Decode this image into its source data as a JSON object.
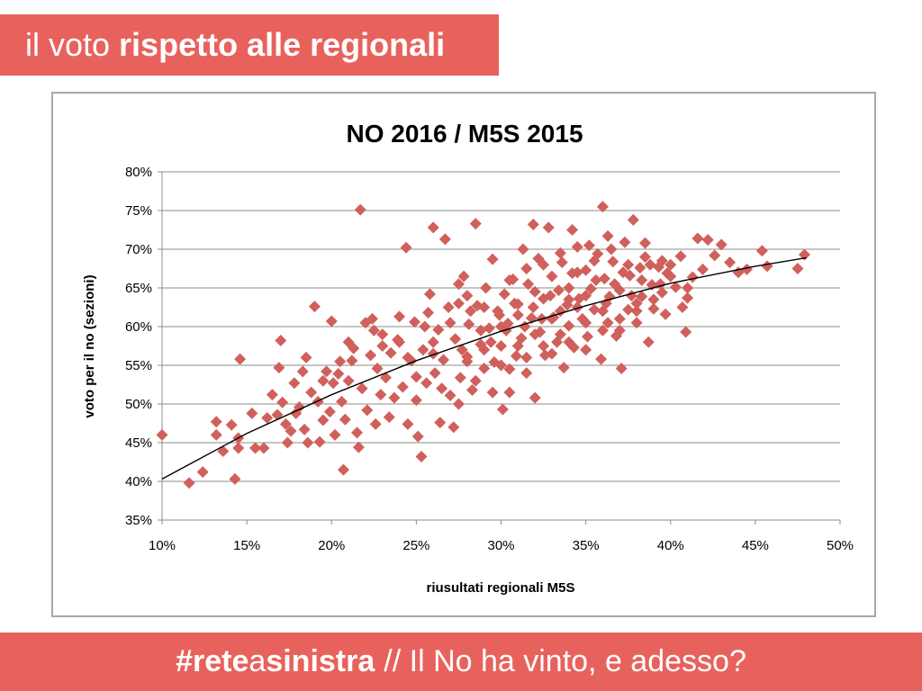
{
  "header": {
    "title_prefix": "il voto",
    "title_main": "rispetto alle regionali"
  },
  "footer": {
    "hashtag_part1": "#rete",
    "hashtag_part2": "a",
    "hashtag_part3": "sinistra",
    "tagline": "// Il No ha vinto, e adesso?"
  },
  "colors": {
    "accent": "#e8625d",
    "marker": "#d0605c",
    "trendline": "#000000"
  },
  "chart_data": {
    "type": "scatter",
    "title": "NO 2016 / M5S 2015",
    "xlabel": "riusultati regionali M5S",
    "ylabel": "voto per il no (sezioni)",
    "xlim": [
      10,
      50
    ],
    "ylim": [
      35,
      80
    ],
    "x_ticks": [
      "10%",
      "15%",
      "20%",
      "25%",
      "30%",
      "35%",
      "40%",
      "45%",
      "50%"
    ],
    "y_ticks": [
      "35%",
      "40%",
      "45%",
      "50%",
      "55%",
      "60%",
      "65%",
      "70%",
      "75%",
      "80%"
    ],
    "grid": "horizontal",
    "marker": "diamond",
    "trendline": {
      "type": "polynomial",
      "x": [
        10,
        15,
        20,
        25,
        30,
        35,
        40,
        45,
        48
      ],
      "y": [
        40.3,
        46.2,
        51.2,
        55.6,
        59.4,
        62.7,
        65.6,
        67.8,
        68.9
      ]
    },
    "points": [
      [
        10,
        46
      ],
      [
        11.6,
        39.8
      ],
      [
        12.4,
        41.2
      ],
      [
        13.2,
        47.7
      ],
      [
        13.2,
        46
      ],
      [
        13.6,
        43.9
      ],
      [
        14.1,
        47.3
      ],
      [
        14.3,
        40.3
      ],
      [
        14.5,
        45.6
      ],
      [
        14.5,
        44.3
      ],
      [
        14.6,
        55.8
      ],
      [
        15.3,
        48.8
      ],
      [
        15.5,
        44.3
      ],
      [
        16,
        44.3
      ],
      [
        16.2,
        48.2
      ],
      [
        16.5,
        51.2
      ],
      [
        16.8,
        48.6
      ],
      [
        16.9,
        54.7
      ],
      [
        17,
        58.2
      ],
      [
        17.1,
        50.2
      ],
      [
        17.3,
        47.4
      ],
      [
        17.4,
        45
      ],
      [
        17.6,
        46.5
      ],
      [
        17.8,
        52.7
      ],
      [
        17.9,
        48.8
      ],
      [
        18.1,
        49.6
      ],
      [
        18.3,
        54.2
      ],
      [
        18.4,
        46.7
      ],
      [
        18.6,
        45
      ],
      [
        18.8,
        51.5
      ],
      [
        19,
        62.6
      ],
      [
        19.2,
        50.3
      ],
      [
        19.3,
        45.1
      ],
      [
        19.5,
        47.9
      ],
      [
        19.7,
        54.2
      ],
      [
        19.9,
        49
      ],
      [
        20.1,
        52.7
      ],
      [
        20,
        60.7
      ],
      [
        20.2,
        46
      ],
      [
        20.4,
        53.9
      ],
      [
        20.6,
        50.3
      ],
      [
        20.7,
        41.5
      ],
      [
        20.8,
        48
      ],
      [
        21,
        53
      ],
      [
        21.2,
        55.6
      ],
      [
        21.3,
        57.2
      ],
      [
        21.5,
        46.3
      ],
      [
        21.6,
        44.4
      ],
      [
        21.7,
        75.1
      ],
      [
        21.8,
        52
      ],
      [
        22,
        60.5
      ],
      [
        22.1,
        49.2
      ],
      [
        22.3,
        56.3
      ],
      [
        22.4,
        61
      ],
      [
        22.6,
        47.4
      ],
      [
        22.7,
        54.6
      ],
      [
        22.9,
        51.2
      ],
      [
        23,
        59
      ],
      [
        23.2,
        53.4
      ],
      [
        23.4,
        48.3
      ],
      [
        23.5,
        56.6
      ],
      [
        23.7,
        50.8
      ],
      [
        23.9,
        58.3
      ],
      [
        24,
        61.3
      ],
      [
        24.2,
        52.2
      ],
      [
        24.4,
        70.2
      ],
      [
        24.5,
        47.4
      ],
      [
        24.7,
        55.6
      ],
      [
        24.9,
        60.6
      ],
      [
        25,
        50.5
      ],
      [
        25.1,
        45.8
      ],
      [
        25.3,
        43.2
      ],
      [
        25.4,
        57
      ],
      [
        25.6,
        52.7
      ],
      [
        25.7,
        61.8
      ],
      [
        25.8,
        64.2
      ],
      [
        26,
        72.8
      ],
      [
        26.1,
        54
      ],
      [
        26.3,
        59.6
      ],
      [
        26.4,
        47.6
      ],
      [
        26.6,
        55.7
      ],
      [
        26.7,
        71.3
      ],
      [
        26.9,
        62.5
      ],
      [
        27,
        51.1
      ],
      [
        27.2,
        47
      ],
      [
        27.3,
        58.4
      ],
      [
        27.5,
        63
      ],
      [
        27.6,
        53.4
      ],
      [
        27.8,
        66.5
      ],
      [
        28,
        56.1
      ],
      [
        28.1,
        60.3
      ],
      [
        28.3,
        51.8
      ],
      [
        28.5,
        73.3
      ],
      [
        28.6,
        62.7
      ],
      [
        28.8,
        57.7
      ],
      [
        29,
        54.6
      ],
      [
        29.1,
        65
      ],
      [
        29.3,
        59.8
      ],
      [
        29.5,
        68.7
      ],
      [
        29.6,
        55.4
      ],
      [
        29.8,
        62
      ],
      [
        30,
        57.5
      ],
      [
        30.1,
        49.3
      ],
      [
        30.2,
        64.2
      ],
      [
        30.4,
        60.4
      ],
      [
        30.5,
        51.5
      ],
      [
        30.7,
        66.1
      ],
      [
        30.9,
        56.2
      ],
      [
        31,
        62.9
      ],
      [
        31.2,
        58.5
      ],
      [
        31.3,
        70
      ],
      [
        31.5,
        54
      ],
      [
        31.6,
        65.5
      ],
      [
        31.8,
        61.1
      ],
      [
        31.9,
        73.2
      ],
      [
        32,
        50.8
      ],
      [
        32.2,
        68.8
      ],
      [
        32.3,
        59.3
      ],
      [
        32.5,
        63.6
      ],
      [
        32.6,
        56.3
      ],
      [
        32.8,
        72.8
      ],
      [
        33,
        66.5
      ],
      [
        33.1,
        61.2
      ],
      [
        33.3,
        58
      ],
      [
        33.4,
        64.7
      ],
      [
        33.6,
        68.3
      ],
      [
        33.7,
        54.7
      ],
      [
        33.9,
        62.8
      ],
      [
        34,
        60.1
      ],
      [
        34.2,
        66.9
      ],
      [
        34.3,
        57.3
      ],
      [
        34.5,
        70.3
      ],
      [
        34.6,
        63.6
      ],
      [
        34.8,
        61
      ],
      [
        35,
        67.3
      ],
      [
        35.1,
        58.7
      ],
      [
        35.3,
        64.9
      ],
      [
        35.5,
        62.2
      ],
      [
        35.7,
        69.4
      ],
      [
        35.9,
        55.8
      ],
      [
        36,
        75.5
      ],
      [
        36.1,
        66.2
      ],
      [
        36.3,
        60.5
      ],
      [
        36.4,
        63.9
      ],
      [
        36.6,
        68.4
      ],
      [
        36.8,
        58.8
      ],
      [
        37,
        64.7
      ],
      [
        37.1,
        54.6
      ],
      [
        37.3,
        70.9
      ],
      [
        37.5,
        62.2
      ],
      [
        37.6,
        66.6
      ],
      [
        37.8,
        73.8
      ],
      [
        38,
        60.5
      ],
      [
        38.2,
        67.6
      ],
      [
        38.3,
        63.9
      ],
      [
        38.5,
        70.8
      ],
      [
        38.7,
        58
      ],
      [
        38.9,
        65.4
      ],
      [
        39,
        62.3
      ],
      [
        39.3,
        67.7
      ],
      [
        39.5,
        64.4
      ],
      [
        39.7,
        61.6
      ],
      [
        40,
        68
      ],
      [
        40.3,
        65.1
      ],
      [
        40.6,
        69.1
      ],
      [
        40.9,
        59.3
      ],
      [
        41,
        63.7
      ],
      [
        41.3,
        66.4
      ],
      [
        41.6,
        71.4
      ],
      [
        41.9,
        67.4
      ],
      [
        42.2,
        71.2
      ],
      [
        42.6,
        69.2
      ],
      [
        43,
        70.6
      ],
      [
        43.5,
        68.3
      ],
      [
        44,
        67
      ],
      [
        44.5,
        67.4
      ],
      [
        45.4,
        69.8
      ],
      [
        45.7,
        67.8
      ],
      [
        47.5,
        67.5
      ],
      [
        47.9,
        69.3
      ],
      [
        25.5,
        60
      ],
      [
        26,
        58
      ],
      [
        27,
        60.5
      ],
      [
        27.7,
        57
      ],
      [
        28.2,
        62
      ],
      [
        28.8,
        59.5
      ],
      [
        29.4,
        58
      ],
      [
        29.9,
        61.5
      ],
      [
        30.3,
        59.5
      ],
      [
        30.8,
        63
      ],
      [
        31.4,
        60
      ],
      [
        31.9,
        62.5
      ],
      [
        32.4,
        61
      ],
      [
        32.9,
        64
      ],
      [
        33.5,
        62
      ],
      [
        34,
        65
      ],
      [
        34.5,
        62.5
      ],
      [
        35,
        64
      ],
      [
        35.6,
        66
      ],
      [
        36.2,
        63
      ],
      [
        36.7,
        65.5
      ],
      [
        37.2,
        67
      ],
      [
        37.7,
        64
      ],
      [
        38.3,
        66
      ],
      [
        38.8,
        68
      ],
      [
        39.4,
        65.5
      ],
      [
        30,
        60
      ],
      [
        31,
        61.5
      ],
      [
        32,
        64.5
      ],
      [
        33,
        61
      ],
      [
        34,
        63.5
      ],
      [
        35,
        60.5
      ],
      [
        36,
        62
      ],
      [
        37,
        59.5
      ],
      [
        38,
        63
      ],
      [
        29,
        62.5
      ],
      [
        28,
        64
      ],
      [
        27.5,
        65.5
      ],
      [
        30.5,
        66
      ],
      [
        31.5,
        67.5
      ],
      [
        32.5,
        68
      ],
      [
        33.5,
        69.5
      ],
      [
        34.5,
        67
      ],
      [
        35.5,
        68.5
      ],
      [
        36.5,
        70
      ],
      [
        37.5,
        68
      ],
      [
        38.5,
        69
      ],
      [
        39.5,
        68.5
      ],
      [
        26.5,
        52
      ],
      [
        27.5,
        50
      ],
      [
        28.5,
        53
      ],
      [
        29.5,
        51.5
      ],
      [
        30.5,
        54.5
      ],
      [
        31.5,
        56
      ],
      [
        32.5,
        57.5
      ],
      [
        33.5,
        59
      ],
      [
        24,
        58
      ],
      [
        23,
        57.5
      ],
      [
        22.5,
        59.5
      ],
      [
        21,
        58
      ],
      [
        20.5,
        55.5
      ],
      [
        19.5,
        53
      ],
      [
        18.5,
        56
      ],
      [
        25,
        53.5
      ],
      [
        24.5,
        56
      ],
      [
        26,
        56.5
      ],
      [
        28,
        55.5
      ],
      [
        29,
        57
      ],
      [
        30,
        55
      ],
      [
        31,
        57.5
      ],
      [
        32,
        59
      ],
      [
        33,
        56.5
      ],
      [
        34,
        58
      ],
      [
        35,
        57
      ],
      [
        36,
        59.5
      ],
      [
        37,
        61
      ],
      [
        38,
        62
      ],
      [
        39,
        63.5
      ],
      [
        40,
        66.5
      ],
      [
        41,
        65
      ],
      [
        39.8,
        66.9
      ],
      [
        40.7,
        62.5
      ],
      [
        35.2,
        70.5
      ],
      [
        36.3,
        71.7
      ],
      [
        34.2,
        72.5
      ]
    ]
  }
}
